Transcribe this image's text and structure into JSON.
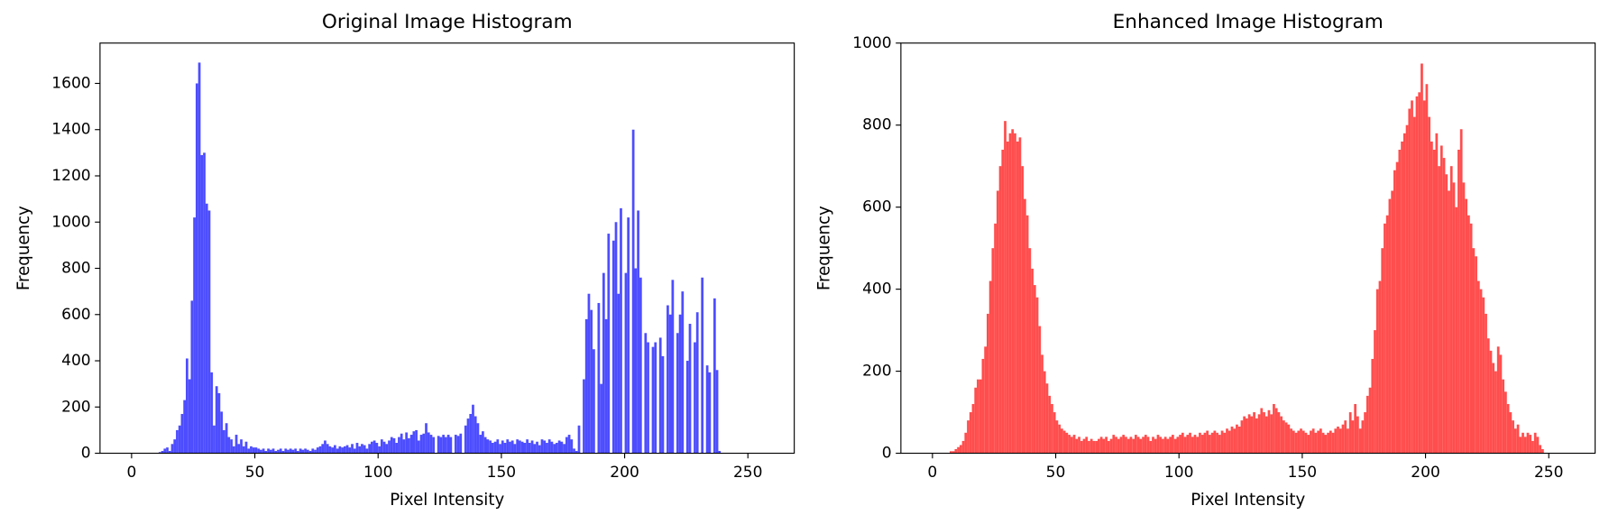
{
  "chart_data": [
    {
      "type": "histogram",
      "title": "Original Image Histogram",
      "x_label": "Pixel Intensity",
      "y_label": "Frequency",
      "color": "#4d4dff",
      "xlim": [
        -12.8,
        268.8
      ],
      "xticks": [
        0,
        50,
        100,
        150,
        200,
        250
      ],
      "ylim": [
        0,
        1774.5
      ],
      "yticks": [
        0,
        200,
        400,
        600,
        800,
        1000,
        1200,
        1400,
        1600
      ],
      "grid": false,
      "bins": [
        0,
        1,
        2,
        3,
        4,
        5,
        6,
        7,
        8,
        9,
        10,
        11,
        12,
        13,
        14,
        15,
        16,
        17,
        18,
        19,
        20,
        21,
        22,
        23,
        24,
        25,
        26,
        27,
        28,
        29,
        30,
        31,
        32,
        33,
        34,
        35,
        36,
        37,
        38,
        39,
        40,
        41,
        42,
        43,
        44,
        45,
        46,
        47,
        48,
        49,
        50,
        51,
        52,
        53,
        54,
        55,
        56,
        57,
        58,
        59,
        60,
        61,
        62,
        63,
        64,
        65,
        66,
        67,
        68,
        69,
        70,
        71,
        72,
        73,
        74,
        75,
        76,
        77,
        78,
        79,
        80,
        81,
        82,
        83,
        84,
        85,
        86,
        87,
        88,
        89,
        90,
        91,
        92,
        93,
        94,
        95,
        96,
        97,
        98,
        99,
        100,
        101,
        102,
        103,
        104,
        105,
        106,
        107,
        108,
        109,
        110,
        111,
        112,
        113,
        114,
        115,
        116,
        117,
        118,
        119,
        120,
        121,
        122,
        123,
        124,
        125,
        126,
        127,
        128,
        129,
        130,
        131,
        132,
        133,
        134,
        135,
        136,
        137,
        138,
        139,
        140,
        141,
        142,
        143,
        144,
        145,
        146,
        147,
        148,
        149,
        150,
        151,
        152,
        153,
        154,
        155,
        156,
        157,
        158,
        159,
        160,
        161,
        162,
        163,
        164,
        165,
        166,
        167,
        168,
        169,
        170,
        171,
        172,
        173,
        174,
        175,
        176,
        177,
        178,
        179,
        180,
        181,
        182,
        183,
        184,
        185,
        186,
        187,
        188,
        189,
        190,
        191,
        192,
        193,
        194,
        195,
        196,
        197,
        198,
        199,
        200,
        201,
        202,
        203,
        204,
        205,
        206,
        207,
        208,
        209,
        210,
        211,
        212,
        213,
        214,
        215,
        216,
        217,
        218,
        219,
        220,
        221,
        222,
        223,
        224,
        225,
        226,
        227,
        228,
        229,
        230,
        231,
        232,
        233,
        234,
        235,
        236,
        237,
        238,
        239,
        240,
        241,
        242,
        243,
        244,
        245,
        246,
        247,
        248,
        249,
        250,
        251,
        252,
        253,
        254,
        255,
        256
      ],
      "values": [
        0,
        0,
        0,
        0,
        0,
        0,
        0,
        0,
        0,
        0,
        0,
        5,
        10,
        20,
        25,
        10,
        40,
        60,
        100,
        120,
        170,
        230,
        410,
        320,
        660,
        1020,
        1600,
        1690,
        1290,
        1300,
        1080,
        1050,
        350,
        120,
        290,
        260,
        180,
        100,
        130,
        70,
        60,
        30,
        80,
        40,
        60,
        30,
        50,
        20,
        30,
        25,
        25,
        20,
        15,
        20,
        10,
        20,
        15,
        20,
        10,
        15,
        20,
        10,
        20,
        15,
        20,
        15,
        20,
        10,
        20,
        15,
        20,
        15,
        10,
        20,
        15,
        25,
        30,
        40,
        55,
        40,
        30,
        25,
        35,
        20,
        30,
        25,
        30,
        35,
        25,
        40,
        20,
        45,
        30,
        40,
        35,
        20,
        40,
        50,
        55,
        45,
        30,
        60,
        50,
        40,
        55,
        70,
        65,
        45,
        70,
        85,
        60,
        90,
        65,
        80,
        95,
        100,
        55,
        80,
        85,
        130,
        90,
        80,
        70,
        0,
        75,
        70,
        80,
        70,
        80,
        70,
        0,
        80,
        75,
        85,
        0,
        120,
        150,
        170,
        210,
        160,
        130,
        80,
        95,
        70,
        60,
        55,
        45,
        50,
        60,
        40,
        55,
        45,
        60,
        50,
        55,
        40,
        60,
        55,
        50,
        45,
        60,
        45,
        55,
        40,
        50,
        35,
        60,
        55,
        45,
        60,
        50,
        40,
        45,
        55,
        50,
        40,
        70,
        80,
        60,
        20,
        10,
        120,
        0,
        320,
        580,
        690,
        620,
        450,
        0,
        650,
        300,
        780,
        580,
        950,
        0,
        920,
        1000,
        690,
        1060,
        0,
        780,
        1020,
        0,
        1400,
        800,
        1050,
        760,
        0,
        520,
        480,
        0,
        460,
        480,
        0,
        500,
        420,
        0,
        640,
        600,
        750,
        0,
        520,
        600,
        700,
        0,
        400,
        560,
        0,
        480,
        610,
        0,
        760,
        0,
        380,
        350,
        0,
        670,
        360,
        10,
        0,
        0,
        0,
        0,
        0,
        0,
        0,
        0,
        0,
        0,
        0,
        0,
        0,
        0,
        0,
        0,
        0
      ]
    },
    {
      "type": "histogram",
      "title": "Enhanced Image Histogram",
      "x_label": "Pixel Intensity",
      "y_label": "Frequency",
      "color": "#ff4d4d",
      "xlim": [
        -12.8,
        268.8
      ],
      "xticks": [
        0,
        50,
        100,
        150,
        200,
        250
      ],
      "ylim": [
        0,
        1000
      ],
      "yticks": [
        0,
        200,
        400,
        600,
        800,
        1000
      ],
      "grid": false,
      "bins": [
        0,
        1,
        2,
        3,
        4,
        5,
        6,
        7,
        8,
        9,
        10,
        11,
        12,
        13,
        14,
        15,
        16,
        17,
        18,
        19,
        20,
        21,
        22,
        23,
        24,
        25,
        26,
        27,
        28,
        29,
        30,
        31,
        32,
        33,
        34,
        35,
        36,
        37,
        38,
        39,
        40,
        41,
        42,
        43,
        44,
        45,
        46,
        47,
        48,
        49,
        50,
        51,
        52,
        53,
        54,
        55,
        56,
        57,
        58,
        59,
        60,
        61,
        62,
        63,
        64,
        65,
        66,
        67,
        68,
        69,
        70,
        71,
        72,
        73,
        74,
        75,
        76,
        77,
        78,
        79,
        80,
        81,
        82,
        83,
        84,
        85,
        86,
        87,
        88,
        89,
        90,
        91,
        92,
        93,
        94,
        95,
        96,
        97,
        98,
        99,
        100,
        101,
        102,
        103,
        104,
        105,
        106,
        107,
        108,
        109,
        110,
        111,
        112,
        113,
        114,
        115,
        116,
        117,
        118,
        119,
        120,
        121,
        122,
        123,
        124,
        125,
        126,
        127,
        128,
        129,
        130,
        131,
        132,
        133,
        134,
        135,
        136,
        137,
        138,
        139,
        140,
        141,
        142,
        143,
        144,
        145,
        146,
        147,
        148,
        149,
        150,
        151,
        152,
        153,
        154,
        155,
        156,
        157,
        158,
        159,
        160,
        161,
        162,
        163,
        164,
        165,
        166,
        167,
        168,
        169,
        170,
        171,
        172,
        173,
        174,
        175,
        176,
        177,
        178,
        179,
        180,
        181,
        182,
        183,
        184,
        185,
        186,
        187,
        188,
        189,
        190,
        191,
        192,
        193,
        194,
        195,
        196,
        197,
        198,
        199,
        200,
        201,
        202,
        203,
        204,
        205,
        206,
        207,
        208,
        209,
        210,
        211,
        212,
        213,
        214,
        215,
        216,
        217,
        218,
        219,
        220,
        221,
        222,
        223,
        224,
        225,
        226,
        227,
        228,
        229,
        230,
        231,
        232,
        233,
        234,
        235,
        236,
        237,
        238,
        239,
        240,
        241,
        242,
        243,
        244,
        245,
        246,
        247,
        248,
        249,
        250,
        251,
        252,
        253,
        254,
        255,
        256
      ],
      "values": [
        0,
        0,
        0,
        0,
        0,
        0,
        0,
        5,
        5,
        10,
        15,
        20,
        30,
        50,
        80,
        100,
        120,
        160,
        180,
        180,
        230,
        260,
        340,
        420,
        500,
        560,
        640,
        700,
        740,
        810,
        760,
        780,
        790,
        780,
        760,
        770,
        700,
        620,
        580,
        500,
        450,
        410,
        380,
        310,
        240,
        200,
        170,
        140,
        120,
        100,
        80,
        70,
        60,
        55,
        50,
        45,
        40,
        45,
        35,
        40,
        30,
        35,
        40,
        30,
        35,
        30,
        30,
        35,
        40,
        35,
        40,
        30,
        35,
        45,
        40,
        35,
        40,
        45,
        40,
        35,
        40,
        35,
        45,
        40,
        35,
        40,
        45,
        40,
        30,
        40,
        35,
        45,
        40,
        35,
        40,
        35,
        40,
        45,
        35,
        40,
        45,
        50,
        40,
        45,
        50,
        40,
        45,
        40,
        50,
        45,
        50,
        55,
        45,
        50,
        55,
        50,
        45,
        55,
        50,
        60,
        55,
        65,
        60,
        70,
        65,
        80,
        90,
        85,
        95,
        90,
        100,
        85,
        95,
        110,
        100,
        90,
        105,
        95,
        120,
        110,
        100,
        90,
        80,
        75,
        70,
        60,
        55,
        50,
        55,
        60,
        55,
        50,
        45,
        55,
        60,
        50,
        55,
        60,
        50,
        45,
        50,
        55,
        50,
        60,
        65,
        60,
        70,
        80,
        60,
        100,
        80,
        120,
        90,
        60,
        80,
        100,
        140,
        160,
        230,
        300,
        400,
        420,
        500,
        560,
        580,
        620,
        640,
        690,
        710,
        740,
        760,
        780,
        800,
        840,
        860,
        820,
        870,
        880,
        950,
        860,
        900,
        820,
        760,
        740,
        780,
        700,
        750,
        720,
        680,
        640,
        700,
        660,
        600,
        740,
        790,
        660,
        620,
        580,
        560,
        500,
        480,
        420,
        400,
        380,
        340,
        280,
        250,
        220,
        200,
        260,
        240,
        180,
        150,
        120,
        100,
        80,
        60,
        70,
        40,
        50,
        40,
        50,
        45,
        30,
        50,
        40,
        20,
        10,
        0,
        0,
        0,
        0,
        0,
        0,
        0,
        0
      ]
    }
  ]
}
